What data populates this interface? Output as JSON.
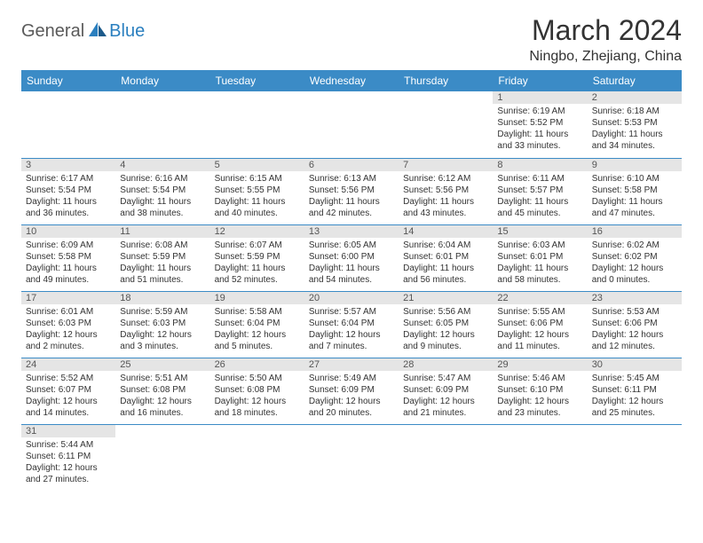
{
  "brand": {
    "part1": "General",
    "part2": "Blue"
  },
  "title": "March 2024",
  "location": "Ningbo, Zhejiang, China",
  "dayHeaders": [
    "Sunday",
    "Monday",
    "Tuesday",
    "Wednesday",
    "Thursday",
    "Friday",
    "Saturday"
  ],
  "colors": {
    "headerBg": "#3b8bc6",
    "dayNumBg": "#e5e5e5",
    "rowBorder": "#3b8bc6"
  },
  "weeks": [
    [
      null,
      null,
      null,
      null,
      null,
      {
        "n": "1",
        "sr": "Sunrise: 6:19 AM",
        "ss": "Sunset: 5:52 PM",
        "d1": "Daylight: 11 hours",
        "d2": "and 33 minutes."
      },
      {
        "n": "2",
        "sr": "Sunrise: 6:18 AM",
        "ss": "Sunset: 5:53 PM",
        "d1": "Daylight: 11 hours",
        "d2": "and 34 minutes."
      }
    ],
    [
      {
        "n": "3",
        "sr": "Sunrise: 6:17 AM",
        "ss": "Sunset: 5:54 PM",
        "d1": "Daylight: 11 hours",
        "d2": "and 36 minutes."
      },
      {
        "n": "4",
        "sr": "Sunrise: 6:16 AM",
        "ss": "Sunset: 5:54 PM",
        "d1": "Daylight: 11 hours",
        "d2": "and 38 minutes."
      },
      {
        "n": "5",
        "sr": "Sunrise: 6:15 AM",
        "ss": "Sunset: 5:55 PM",
        "d1": "Daylight: 11 hours",
        "d2": "and 40 minutes."
      },
      {
        "n": "6",
        "sr": "Sunrise: 6:13 AM",
        "ss": "Sunset: 5:56 PM",
        "d1": "Daylight: 11 hours",
        "d2": "and 42 minutes."
      },
      {
        "n": "7",
        "sr": "Sunrise: 6:12 AM",
        "ss": "Sunset: 5:56 PM",
        "d1": "Daylight: 11 hours",
        "d2": "and 43 minutes."
      },
      {
        "n": "8",
        "sr": "Sunrise: 6:11 AM",
        "ss": "Sunset: 5:57 PM",
        "d1": "Daylight: 11 hours",
        "d2": "and 45 minutes."
      },
      {
        "n": "9",
        "sr": "Sunrise: 6:10 AM",
        "ss": "Sunset: 5:58 PM",
        "d1": "Daylight: 11 hours",
        "d2": "and 47 minutes."
      }
    ],
    [
      {
        "n": "10",
        "sr": "Sunrise: 6:09 AM",
        "ss": "Sunset: 5:58 PM",
        "d1": "Daylight: 11 hours",
        "d2": "and 49 minutes."
      },
      {
        "n": "11",
        "sr": "Sunrise: 6:08 AM",
        "ss": "Sunset: 5:59 PM",
        "d1": "Daylight: 11 hours",
        "d2": "and 51 minutes."
      },
      {
        "n": "12",
        "sr": "Sunrise: 6:07 AM",
        "ss": "Sunset: 5:59 PM",
        "d1": "Daylight: 11 hours",
        "d2": "and 52 minutes."
      },
      {
        "n": "13",
        "sr": "Sunrise: 6:05 AM",
        "ss": "Sunset: 6:00 PM",
        "d1": "Daylight: 11 hours",
        "d2": "and 54 minutes."
      },
      {
        "n": "14",
        "sr": "Sunrise: 6:04 AM",
        "ss": "Sunset: 6:01 PM",
        "d1": "Daylight: 11 hours",
        "d2": "and 56 minutes."
      },
      {
        "n": "15",
        "sr": "Sunrise: 6:03 AM",
        "ss": "Sunset: 6:01 PM",
        "d1": "Daylight: 11 hours",
        "d2": "and 58 minutes."
      },
      {
        "n": "16",
        "sr": "Sunrise: 6:02 AM",
        "ss": "Sunset: 6:02 PM",
        "d1": "Daylight: 12 hours",
        "d2": "and 0 minutes."
      }
    ],
    [
      {
        "n": "17",
        "sr": "Sunrise: 6:01 AM",
        "ss": "Sunset: 6:03 PM",
        "d1": "Daylight: 12 hours",
        "d2": "and 2 minutes."
      },
      {
        "n": "18",
        "sr": "Sunrise: 5:59 AM",
        "ss": "Sunset: 6:03 PM",
        "d1": "Daylight: 12 hours",
        "d2": "and 3 minutes."
      },
      {
        "n": "19",
        "sr": "Sunrise: 5:58 AM",
        "ss": "Sunset: 6:04 PM",
        "d1": "Daylight: 12 hours",
        "d2": "and 5 minutes."
      },
      {
        "n": "20",
        "sr": "Sunrise: 5:57 AM",
        "ss": "Sunset: 6:04 PM",
        "d1": "Daylight: 12 hours",
        "d2": "and 7 minutes."
      },
      {
        "n": "21",
        "sr": "Sunrise: 5:56 AM",
        "ss": "Sunset: 6:05 PM",
        "d1": "Daylight: 12 hours",
        "d2": "and 9 minutes."
      },
      {
        "n": "22",
        "sr": "Sunrise: 5:55 AM",
        "ss": "Sunset: 6:06 PM",
        "d1": "Daylight: 12 hours",
        "d2": "and 11 minutes."
      },
      {
        "n": "23",
        "sr": "Sunrise: 5:53 AM",
        "ss": "Sunset: 6:06 PM",
        "d1": "Daylight: 12 hours",
        "d2": "and 12 minutes."
      }
    ],
    [
      {
        "n": "24",
        "sr": "Sunrise: 5:52 AM",
        "ss": "Sunset: 6:07 PM",
        "d1": "Daylight: 12 hours",
        "d2": "and 14 minutes."
      },
      {
        "n": "25",
        "sr": "Sunrise: 5:51 AM",
        "ss": "Sunset: 6:08 PM",
        "d1": "Daylight: 12 hours",
        "d2": "and 16 minutes."
      },
      {
        "n": "26",
        "sr": "Sunrise: 5:50 AM",
        "ss": "Sunset: 6:08 PM",
        "d1": "Daylight: 12 hours",
        "d2": "and 18 minutes."
      },
      {
        "n": "27",
        "sr": "Sunrise: 5:49 AM",
        "ss": "Sunset: 6:09 PM",
        "d1": "Daylight: 12 hours",
        "d2": "and 20 minutes."
      },
      {
        "n": "28",
        "sr": "Sunrise: 5:47 AM",
        "ss": "Sunset: 6:09 PM",
        "d1": "Daylight: 12 hours",
        "d2": "and 21 minutes."
      },
      {
        "n": "29",
        "sr": "Sunrise: 5:46 AM",
        "ss": "Sunset: 6:10 PM",
        "d1": "Daylight: 12 hours",
        "d2": "and 23 minutes."
      },
      {
        "n": "30",
        "sr": "Sunrise: 5:45 AM",
        "ss": "Sunset: 6:11 PM",
        "d1": "Daylight: 12 hours",
        "d2": "and 25 minutes."
      }
    ],
    [
      {
        "n": "31",
        "sr": "Sunrise: 5:44 AM",
        "ss": "Sunset: 6:11 PM",
        "d1": "Daylight: 12 hours",
        "d2": "and 27 minutes."
      },
      null,
      null,
      null,
      null,
      null,
      null
    ]
  ]
}
